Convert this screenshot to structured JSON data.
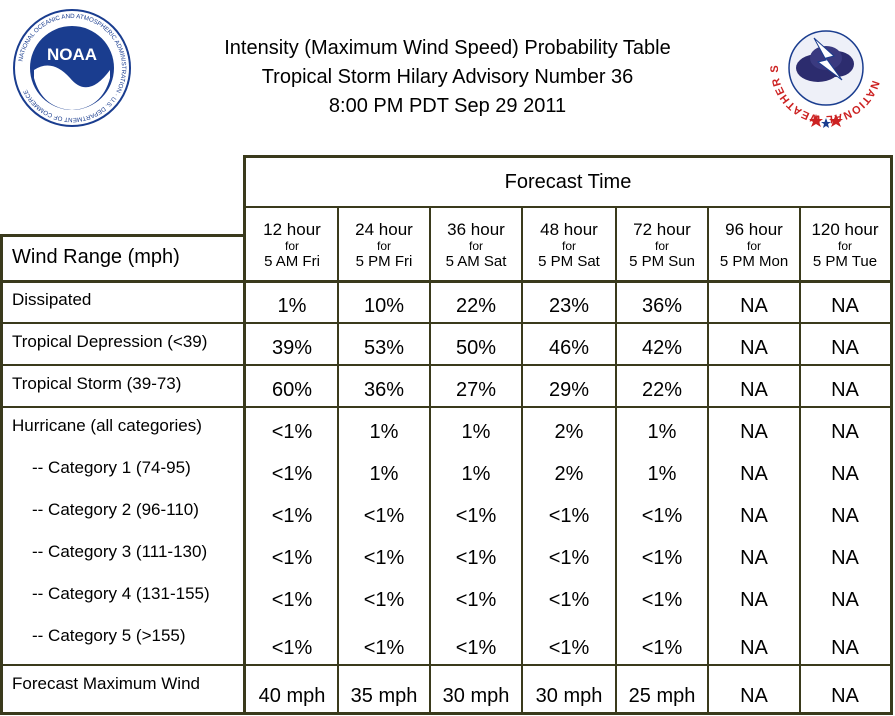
{
  "header": {
    "title_line1": "Intensity (Maximum Wind Speed) Probability Table",
    "title_line2": "Tropical Storm Hilary Advisory Number 36",
    "title_line3": "8:00 PM PDT Sep 29 2011"
  },
  "logos": {
    "noaa_text": "NOAA",
    "noaa_ring": "NATIONAL OCEANIC AND ATMOSPHERIC ADMINISTRATION · U.S. DEPARTMENT OF COMMERCE",
    "nws_ring": "NATIONAL WEATHER SERVICE"
  },
  "colors": {
    "rule": "#3a3a1c",
    "noaa_blue": "#1a3d8f",
    "nws_red": "#cc2222"
  },
  "chart_data": {
    "type": "table",
    "group_header": "Forecast Time",
    "row_header": "Wind Range (mph)",
    "columns": [
      {
        "hour": "12 hour",
        "for": "for",
        "time": "5 AM Fri"
      },
      {
        "hour": "24 hour",
        "for": "for",
        "time": "5 PM Fri"
      },
      {
        "hour": "36 hour",
        "for": "for",
        "time": "5 AM Sat"
      },
      {
        "hour": "48 hour",
        "for": "for",
        "time": "5 PM Sat"
      },
      {
        "hour": "72 hour",
        "for": "for",
        "time": "5 PM Sun"
      },
      {
        "hour": "96 hour",
        "for": "for",
        "time": "5 PM Mon"
      },
      {
        "hour": "120 hour",
        "for": "for",
        "time": "5 PM Tue"
      }
    ],
    "rows": [
      {
        "label": "Dissipated",
        "values": [
          "1%",
          "10%",
          "22%",
          "23%",
          "36%",
          "NA",
          "NA"
        ]
      },
      {
        "label": "Tropical Depression (<39)",
        "values": [
          "39%",
          "53%",
          "50%",
          "46%",
          "42%",
          "NA",
          "NA"
        ]
      },
      {
        "label": "Tropical Storm (39-73)",
        "values": [
          "60%",
          "36%",
          "27%",
          "29%",
          "22%",
          "NA",
          "NA"
        ]
      },
      {
        "label": "Hurricane (all categories)",
        "values": [
          "<1%",
          "1%",
          "1%",
          "2%",
          "1%",
          "NA",
          "NA"
        ]
      },
      {
        "label": "-- Category 1 (74-95)",
        "values": [
          "<1%",
          "1%",
          "1%",
          "2%",
          "1%",
          "NA",
          "NA"
        ]
      },
      {
        "label": "-- Category 2 (96-110)",
        "values": [
          "<1%",
          "<1%",
          "<1%",
          "<1%",
          "<1%",
          "NA",
          "NA"
        ]
      },
      {
        "label": "-- Category 3 (111-130)",
        "values": [
          "<1%",
          "<1%",
          "<1%",
          "<1%",
          "<1%",
          "NA",
          "NA"
        ]
      },
      {
        "label": "-- Category 4 (131-155)",
        "values": [
          "<1%",
          "<1%",
          "<1%",
          "<1%",
          "<1%",
          "NA",
          "NA"
        ]
      },
      {
        "label": "-- Category 5 (>155)",
        "values": [
          "<1%",
          "<1%",
          "<1%",
          "<1%",
          "<1%",
          "NA",
          "NA"
        ]
      },
      {
        "label": "Forecast Maximum Wind",
        "values": [
          "40 mph",
          "35 mph",
          "30 mph",
          "30 mph",
          "25 mph",
          "NA",
          "NA"
        ]
      }
    ]
  }
}
